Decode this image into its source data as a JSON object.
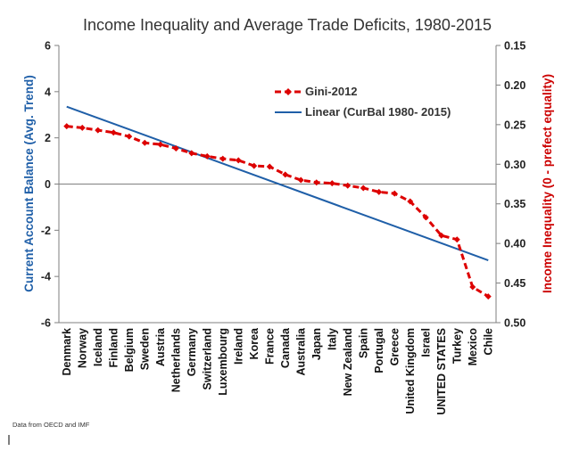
{
  "chart_data": {
    "type": "line",
    "title": "Income Inequality and Average Trade Deficits, 1980-2015",
    "categories": [
      "Denmark",
      "Norway",
      "Iceland",
      "Finland",
      "Belgium",
      "Sweden",
      "Austria",
      "Netherlands",
      "Germany",
      "Switzerland",
      "Luxembourg",
      "Ireland",
      "Korea",
      "France",
      "Canada",
      "Australia",
      "Japan",
      "Italy",
      "New Zealand",
      "Spain",
      "Portugal",
      "Greece",
      "United Kingdom",
      "Israel",
      "UNITED STATES",
      "Turkey",
      "Mexico",
      "Chile"
    ],
    "y_left": {
      "label": "Current Account Balance (Avg. Trend)",
      "ticks": [
        "6",
        "4",
        "2",
        "0",
        "-2",
        "-4",
        "-6"
      ],
      "range": [
        -6,
        6
      ],
      "color": "#1f5fa8"
    },
    "y_right": {
      "label": "Income Inequality (0 - prefect equality)",
      "ticks": [
        "0.15",
        "0.20",
        "0.25",
        "0.30",
        "0.35",
        "0.40",
        "0.45",
        "0.50"
      ],
      "range": [
        0.15,
        0.5
      ],
      "inverted": true,
      "color": "#cc0000"
    },
    "series": [
      {
        "name": "Gini-2012",
        "axis": "right",
        "style": "dashed",
        "marker": "diamond",
        "color": "#dd0000",
        "values": [
          0.252,
          0.254,
          0.257,
          0.26,
          0.265,
          0.273,
          0.275,
          0.28,
          0.286,
          0.29,
          0.293,
          0.295,
          0.302,
          0.303,
          0.313,
          0.32,
          0.323,
          0.324,
          0.327,
          0.33,
          0.335,
          0.337,
          0.347,
          0.367,
          0.39,
          0.395,
          0.455,
          0.467
        ]
      },
      {
        "name": "Linear (CurBal 1980- 2015)",
        "axis": "left",
        "style": "solid",
        "color": "#1f5fa8",
        "start": 3.35,
        "end": -3.3
      }
    ],
    "legend_placement": "top-center",
    "grid": false
  },
  "footer": {
    "source": "Data from OECD and IMF"
  }
}
